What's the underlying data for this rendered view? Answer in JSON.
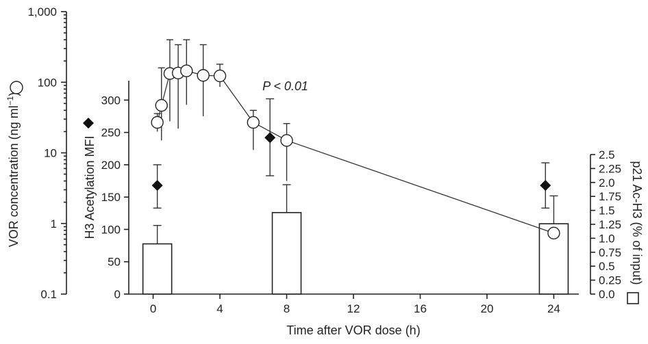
{
  "chart_data": {
    "type": "combo",
    "x": {
      "label": "Time after VOR dose (h)",
      "ticks": [
        0,
        4,
        8,
        12,
        16,
        20,
        24
      ],
      "range": [
        -1.5,
        25.5
      ]
    },
    "axes": {
      "vor_log": {
        "label_text": "VOR concentration (ng ml",
        "label_sup": "−1",
        "label_close": ")",
        "scale": "log",
        "range": [
          0.1,
          1000
        ],
        "ticks": [
          {
            "v": 0.1,
            "t": "0.1"
          },
          {
            "v": 1,
            "t": "1"
          },
          {
            "v": 10,
            "t": "10"
          },
          {
            "v": 100,
            "t": "100"
          },
          {
            "v": 1000,
            "t": "1,000"
          }
        ]
      },
      "mfi": {
        "label": "H3 Acetylation MFI",
        "range": [
          0,
          330
        ],
        "ticks": [
          {
            "v": 0,
            "t": "0"
          },
          {
            "v": 50,
            "t": "50"
          },
          {
            "v": 100,
            "t": "100"
          },
          {
            "v": 150,
            "t": "150"
          },
          {
            "v": 200,
            "t": "200"
          },
          {
            "v": 250,
            "t": "250"
          },
          {
            "v": 300,
            "t": "300"
          }
        ]
      },
      "p21": {
        "label": "p21 Ac-H3 (% of input)",
        "range": [
          0,
          2.5
        ],
        "ticks": [
          {
            "v": 0,
            "t": "0.0"
          },
          {
            "v": 0.25,
            "t": "0.25"
          },
          {
            "v": 0.5,
            "t": "0.5"
          },
          {
            "v": 0.75,
            "t": "0.75"
          },
          {
            "v": 1.0,
            "t": "1.0"
          },
          {
            "v": 1.25,
            "t": "1.25"
          },
          {
            "v": 1.5,
            "t": "1.5"
          },
          {
            "v": 1.75,
            "t": "1.75"
          },
          {
            "v": 2.0,
            "t": "2.0"
          },
          {
            "v": 2.25,
            "t": "2.25"
          },
          {
            "v": 2.5,
            "t": "2.5"
          }
        ]
      }
    },
    "series": [
      {
        "type": "line",
        "marker": "open-circle",
        "axis": "vor_log",
        "points": [
          {
            "x": 0.25,
            "y": 27,
            "lo": 20,
            "hi": 36
          },
          {
            "x": 0.5,
            "y": 47,
            "lo": 15,
            "hi": 160
          },
          {
            "x": 1.0,
            "y": 133,
            "lo": 28,
            "hi": 400
          },
          {
            "x": 1.5,
            "y": 135,
            "lo": 22,
            "hi": 340
          },
          {
            "x": 2.0,
            "y": 145,
            "lo": 48,
            "hi": 400
          },
          {
            "x": 3.0,
            "y": 125,
            "lo": 33,
            "hi": 340
          },
          {
            "x": 4.0,
            "y": 123,
            "lo": 86,
            "hi": 180
          },
          {
            "x": 6.0,
            "y": 27,
            "lo": 11,
            "hi": 40
          },
          {
            "x": 8.0,
            "y": 15,
            "lo": 4,
            "hi": 26
          },
          {
            "x": 24.0,
            "y": 0.73,
            "lo": 0.73,
            "hi": 0.73
          }
        ]
      },
      {
        "type": "scatter",
        "marker": "filled-diamond",
        "axis": "mfi",
        "points": [
          {
            "x": 0.25,
            "y": 168,
            "lo": 133,
            "hi": 200
          },
          {
            "x": 7.0,
            "y": 242,
            "lo": 183,
            "hi": 302
          },
          {
            "x": 23.5,
            "y": 168,
            "lo": 133,
            "hi": 203
          }
        ]
      },
      {
        "type": "bar",
        "axis": "p21",
        "points": [
          {
            "x": 0.25,
            "y": 0.9,
            "hi": 1.23
          },
          {
            "x": 8.0,
            "y": 1.46,
            "hi": 1.96
          },
          {
            "x": 24.0,
            "y": 1.26,
            "hi": 1.76
          }
        ]
      }
    ],
    "annotations": [
      {
        "text": "P < 0.01",
        "x": 8.0,
        "y_log": 120
      }
    ],
    "legend_markers": {
      "circle": "open-circle",
      "diamond": "filled-diamond",
      "square": "open-square"
    }
  }
}
